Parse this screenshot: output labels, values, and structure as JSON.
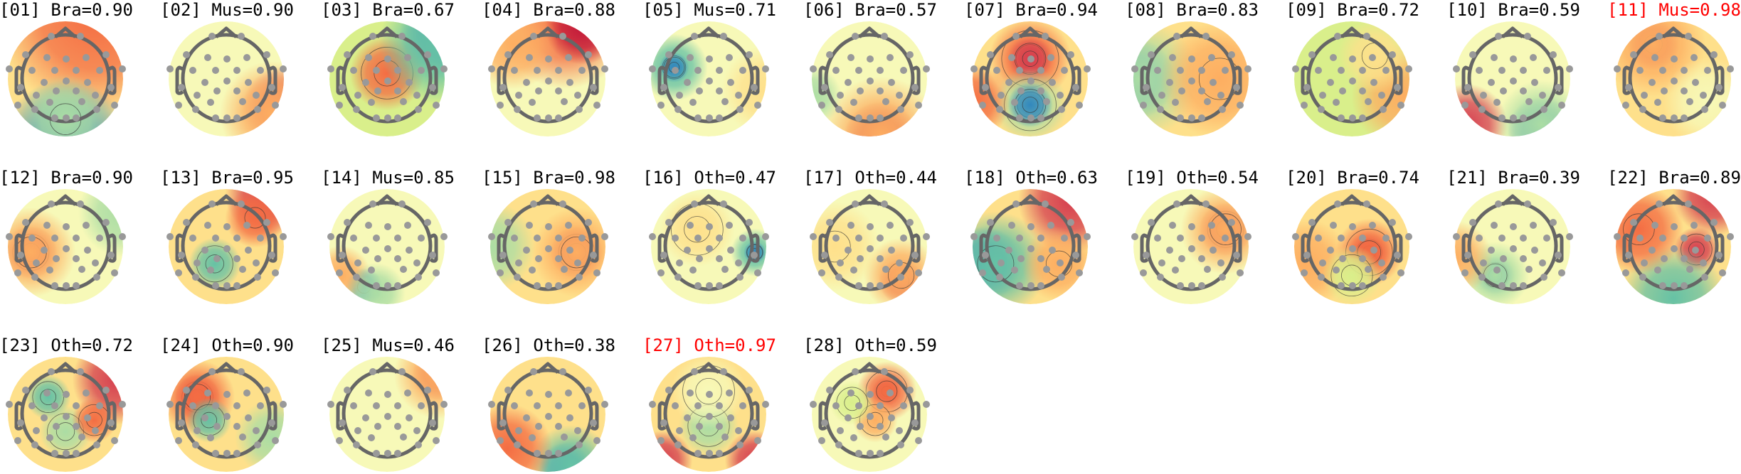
{
  "chart_data": {
    "type": "heatmap",
    "colors": {
      "title": "#000000",
      "highlight": "#ff0000",
      "head": "#666666",
      "sensor": "#999999"
    },
    "colormap": "spectral",
    "topomaps": [
      {
        "index": "01",
        "label": "Bra",
        "score": 0.9,
        "title": "[01] Bra=0.90",
        "highlighted": false
      },
      {
        "index": "02",
        "label": "Mus",
        "score": 0.9,
        "title": "[02] Mus=0.90",
        "highlighted": false
      },
      {
        "index": "03",
        "label": "Bra",
        "score": 0.67,
        "title": "[03] Bra=0.67",
        "highlighted": false
      },
      {
        "index": "04",
        "label": "Bra",
        "score": 0.88,
        "title": "[04] Bra=0.88",
        "highlighted": false
      },
      {
        "index": "05",
        "label": "Mus",
        "score": 0.71,
        "title": "[05] Mus=0.71",
        "highlighted": false
      },
      {
        "index": "06",
        "label": "Bra",
        "score": 0.57,
        "title": "[06] Bra=0.57",
        "highlighted": false
      },
      {
        "index": "07",
        "label": "Bra",
        "score": 0.94,
        "title": "[07] Bra=0.94",
        "highlighted": false
      },
      {
        "index": "08",
        "label": "Bra",
        "score": 0.83,
        "title": "[08] Bra=0.83",
        "highlighted": false
      },
      {
        "index": "09",
        "label": "Bra",
        "score": 0.72,
        "title": "[09] Bra=0.72",
        "highlighted": false
      },
      {
        "index": "10",
        "label": "Bra",
        "score": 0.59,
        "title": "[10] Bra=0.59",
        "highlighted": false
      },
      {
        "index": "11",
        "label": "Mus",
        "score": 0.98,
        "title": "[11] Mus=0.98",
        "highlighted": true
      },
      {
        "index": "12",
        "label": "Bra",
        "score": 0.9,
        "title": "[12] Bra=0.90",
        "highlighted": false
      },
      {
        "index": "13",
        "label": "Bra",
        "score": 0.95,
        "title": "[13] Bra=0.95",
        "highlighted": false
      },
      {
        "index": "14",
        "label": "Mus",
        "score": 0.85,
        "title": "[14] Mus=0.85",
        "highlighted": false
      },
      {
        "index": "15",
        "label": "Bra",
        "score": 0.98,
        "title": "[15] Bra=0.98",
        "highlighted": false
      },
      {
        "index": "16",
        "label": "Oth",
        "score": 0.47,
        "title": "[16] Oth=0.47",
        "highlighted": false
      },
      {
        "index": "17",
        "label": "Oth",
        "score": 0.44,
        "title": "[17] Oth=0.44",
        "highlighted": false
      },
      {
        "index": "18",
        "label": "Oth",
        "score": 0.63,
        "title": "[18] Oth=0.63",
        "highlighted": false
      },
      {
        "index": "19",
        "label": "Oth",
        "score": 0.54,
        "title": "[19] Oth=0.54",
        "highlighted": false
      },
      {
        "index": "20",
        "label": "Bra",
        "score": 0.74,
        "title": "[20] Bra=0.74",
        "highlighted": false
      },
      {
        "index": "21",
        "label": "Bra",
        "score": 0.39,
        "title": "[21] Bra=0.39",
        "highlighted": false
      },
      {
        "index": "22",
        "label": "Bra",
        "score": 0.89,
        "title": "[22] Bra=0.89",
        "highlighted": false
      },
      {
        "index": "23",
        "label": "Oth",
        "score": 0.72,
        "title": "[23] Oth=0.72",
        "highlighted": false
      },
      {
        "index": "24",
        "label": "Oth",
        "score": 0.9,
        "title": "[24] Oth=0.90",
        "highlighted": false
      },
      {
        "index": "25",
        "label": "Mus",
        "score": 0.46,
        "title": "[25] Mus=0.46",
        "highlighted": false
      },
      {
        "index": "26",
        "label": "Oth",
        "score": 0.38,
        "title": "[26] Oth=0.38",
        "highlighted": false
      },
      {
        "index": "27",
        "label": "Oth",
        "score": 0.97,
        "title": "[27] Oth=0.97",
        "highlighted": true
      },
      {
        "index": "28",
        "label": "Oth",
        "score": 0.59,
        "title": "[28] Oth=0.59",
        "highlighted": false
      }
    ]
  }
}
